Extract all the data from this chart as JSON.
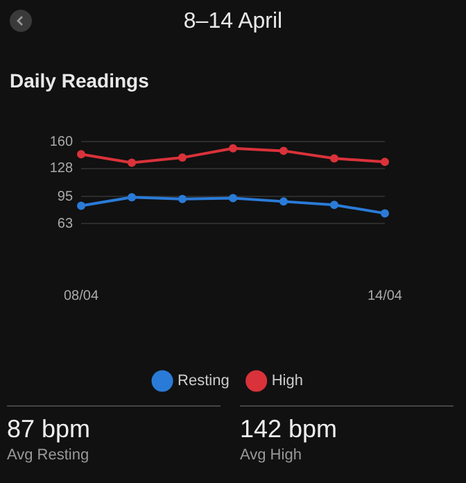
{
  "chart_data": {
    "type": "line",
    "title": "8–14 April",
    "subtitle": "Daily Readings",
    "categories": [
      "08/04",
      null,
      null,
      null,
      null,
      null,
      "14/04"
    ],
    "series": [
      {
        "name": "Resting",
        "color": "#2a7bd8",
        "values": [
          84,
          94,
          92,
          93,
          89,
          85,
          75
        ]
      },
      {
        "name": "High",
        "color": "#d9323a",
        "values": [
          145,
          135,
          141,
          152,
          149,
          140,
          136
        ]
      }
    ],
    "ylim": [
      63,
      160
    ],
    "yticks": [
      63,
      95,
      128,
      160
    ],
    "grid": "y",
    "legend": "bottom",
    "marker": "circle",
    "line_style": "solid",
    "annotations": [
      "87 bpm",
      "Avg Resting",
      "142 bpm",
      "Avg High"
    ]
  }
}
